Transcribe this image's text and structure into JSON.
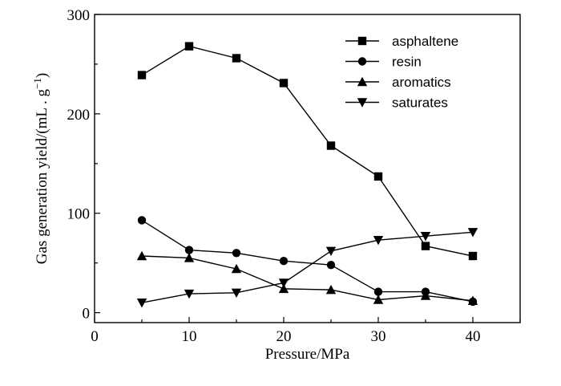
{
  "chart_data": {
    "type": "line",
    "x": [
      5,
      10,
      15,
      20,
      25,
      30,
      35,
      40
    ],
    "xlabel": "Pressure/MPa",
    "ylabel_main": "Gas generation yield/(mL . g",
    "ylabel_sup": "−1",
    "ylabel_end": ")",
    "xlim": [
      0,
      45
    ],
    "ylim": [
      -10,
      300
    ],
    "xticks": [
      0,
      10,
      20,
      30,
      40
    ],
    "yticks": [
      0,
      100,
      200,
      300
    ],
    "grid": false,
    "legend_position": "top-right",
    "series": [
      {
        "name": "asphaltene",
        "marker": "square",
        "values": [
          239,
          268,
          256,
          231,
          168,
          137,
          67,
          57
        ]
      },
      {
        "name": "resin",
        "marker": "circle",
        "values": [
          93,
          63,
          60,
          52,
          48,
          21,
          21,
          11
        ]
      },
      {
        "name": "aromatics",
        "marker": "triangle-up",
        "values": [
          57,
          55,
          44,
          24,
          23,
          13,
          17,
          12
        ]
      },
      {
        "name": "saturates",
        "marker": "triangle-down",
        "values": [
          10,
          19,
          20,
          30,
          62,
          73,
          77,
          81
        ]
      }
    ]
  }
}
